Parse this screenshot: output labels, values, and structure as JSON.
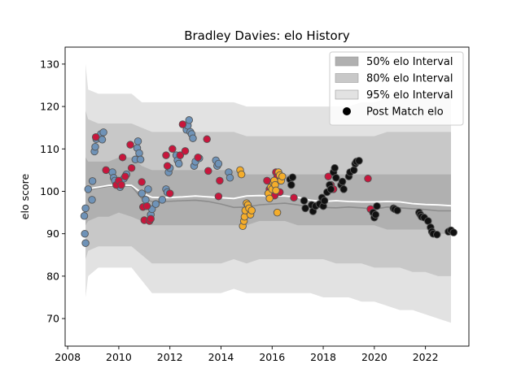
{
  "chart_data": {
    "type": "scatter",
    "title": "Bradley Davies: elo History",
    "xlabel": "",
    "ylabel": "elo score",
    "xlim": [
      2007.9,
      2023.7
    ],
    "ylim": [
      63.5,
      134
    ],
    "xticks": [
      2008,
      2010,
      2012,
      2014,
      2016,
      2018,
      2020,
      2022
    ],
    "yticks": [
      70,
      80,
      90,
      100,
      110,
      120,
      130
    ],
    "legend_position": "top-right",
    "legend": [
      {
        "label": "50% elo Interval",
        "kind": "band",
        "color": "#b0b0b0"
      },
      {
        "label": "80% elo Interval",
        "kind": "band",
        "color": "#c8c8c8"
      },
      {
        "label": "95% elo Interval",
        "kind": "band",
        "color": "#e2e2e2"
      },
      {
        "label": "Post Match elo",
        "kind": "marker",
        "color": "#000000"
      }
    ],
    "colors": {
      "band50": "#b0b0b0",
      "band80": "#c8c8c8",
      "band95": "#e2e2e2",
      "median_line": "#8c8c8c",
      "mean_line": "#ffffff",
      "team_blue": "#6f93b8",
      "team_red": "#c8163c",
      "team_orange": "#f4ad2b",
      "team_black": "#111111",
      "edge": "#555555"
    },
    "bands": {
      "x": [
        2008.7,
        2008.8,
        2009.2,
        2009.6,
        2010.0,
        2010.5,
        2010.9,
        2011.3,
        2011.8,
        2012.5,
        2013.0,
        2013.5,
        2014.0,
        2014.5,
        2015.0,
        2015.5,
        2016.0,
        2016.5,
        2017.0,
        2017.5,
        2018.0,
        2018.5,
        2019.0,
        2019.5,
        2020.0,
        2020.5,
        2021.0,
        2021.5,
        2022.0,
        2022.5,
        2023.0
      ],
      "p95_low": [
        75,
        80,
        82,
        82,
        82,
        82,
        79,
        76,
        76,
        76,
        76,
        76,
        76,
        77,
        76,
        76,
        76,
        76,
        76,
        76,
        75,
        75,
        75,
        74,
        74,
        73,
        72,
        72,
        71,
        70,
        69
      ],
      "p95_high": [
        130,
        124,
        123,
        123,
        123,
        123,
        121,
        121,
        121,
        121,
        121,
        121,
        121,
        121,
        120,
        120,
        120,
        120,
        120,
        120,
        120,
        120,
        120,
        121,
        121,
        122,
        122,
        122,
        123,
        123,
        124
      ],
      "p80_low": [
        84,
        86,
        87,
        87,
        87,
        87,
        85,
        83,
        83,
        83,
        83,
        83,
        83,
        84,
        83,
        84,
        84,
        84,
        84,
        84,
        84,
        83,
        83,
        83,
        82,
        82,
        82,
        81,
        81,
        80,
        80
      ],
      "p80_high": [
        119,
        117,
        116,
        116,
        116,
        116,
        115,
        114,
        114,
        114,
        114,
        114,
        114,
        114,
        113,
        113,
        113,
        113,
        113,
        113,
        113,
        113,
        113,
        113,
        113,
        114,
        114,
        114,
        114,
        114,
        114
      ],
      "p50_low": [
        92,
        93,
        94,
        94,
        95,
        94,
        93,
        92,
        92,
        92,
        92,
        92,
        92,
        92,
        92,
        93,
        93,
        93,
        92,
        92,
        92,
        92,
        92,
        92,
        92,
        91,
        91,
        91,
        91,
        90,
        90
      ],
      "p50_high": [
        108,
        107,
        107,
        107,
        108,
        108,
        106,
        105,
        105,
        105,
        105,
        105,
        105,
        105,
        104,
        104,
        104,
        104,
        104,
        104,
        104,
        104,
        104,
        104,
        104,
        104,
        104,
        104,
        104,
        104,
        104
      ],
      "median": [
        100,
        100.3,
        100.8,
        101.2,
        101.3,
        101.2,
        98.3,
        97.6,
        97.6,
        97.8,
        97.9,
        97.6,
        97.0,
        96.2,
        96.3,
        96.8,
        97.0,
        97.2,
        96.8,
        96.3,
        96.2,
        96.1,
        96.3,
        96.1,
        95.8,
        96.3,
        96.1,
        95.9,
        95.7,
        95.4,
        95.4
      ],
      "mean": [
        100.2,
        100.6,
        101.0,
        101.4,
        101.5,
        101.4,
        99.6,
        98.6,
        98.5,
        98.7,
        98.9,
        98.7,
        98.5,
        98.3,
        98.9,
        99.0,
        98.9,
        98.9,
        98.6,
        97.9,
        97.6,
        97.8,
        97.6,
        97.5,
        97.5,
        97.6,
        97.5,
        97.1,
        96.9,
        96.8,
        96.6
      ]
    },
    "series": [
      {
        "color_key": "team_blue",
        "points": [
          [
            2008.65,
            94.2
          ],
          [
            2008.7,
            96.0
          ],
          [
            2008.67,
            90.0
          ],
          [
            2008.7,
            87.8
          ],
          [
            2008.8,
            100.5
          ],
          [
            2008.95,
            98.0
          ],
          [
            2008.97,
            102.4
          ],
          [
            2009.05,
            109.4
          ],
          [
            2009.08,
            110.5
          ],
          [
            2009.12,
            112.3
          ],
          [
            2009.2,
            112.8
          ],
          [
            2009.3,
            113.5
          ],
          [
            2009.4,
            113.9
          ],
          [
            2009.35,
            112.2
          ],
          [
            2009.75,
            104.5
          ],
          [
            2009.8,
            103.2
          ],
          [
            2009.85,
            102.5
          ],
          [
            2010.05,
            101.0
          ],
          [
            2010.2,
            103.0
          ],
          [
            2010.3,
            104.0
          ],
          [
            2010.65,
            107.5
          ],
          [
            2010.72,
            110.2
          ],
          [
            2010.75,
            111.8
          ],
          [
            2010.8,
            109.0
          ],
          [
            2010.85,
            107.5
          ],
          [
            2010.9,
            99.5
          ],
          [
            2011.05,
            98.0
          ],
          [
            2011.15,
            100.5
          ],
          [
            2011.25,
            94.5
          ],
          [
            2011.3,
            95.8
          ],
          [
            2011.45,
            97.0
          ],
          [
            2011.7,
            98.0
          ],
          [
            2011.85,
            100.5
          ],
          [
            2011.9,
            99.8
          ],
          [
            2011.95,
            104.5
          ],
          [
            2012.0,
            105.5
          ],
          [
            2012.25,
            108.5
          ],
          [
            2012.3,
            107.3
          ],
          [
            2012.35,
            106.5
          ],
          [
            2012.65,
            114.5
          ],
          [
            2012.7,
            115.5
          ],
          [
            2012.75,
            116.8
          ],
          [
            2012.8,
            114.0
          ],
          [
            2012.85,
            113.5
          ],
          [
            2012.9,
            112.5
          ],
          [
            2012.95,
            106.0
          ],
          [
            2013.0,
            107.0
          ],
          [
            2013.15,
            107.8
          ],
          [
            2013.8,
            107.3
          ],
          [
            2013.85,
            106.0
          ],
          [
            2013.9,
            106.5
          ],
          [
            2014.3,
            104.5
          ],
          [
            2014.35,
            103.2
          ]
        ]
      },
      {
        "color_key": "team_red",
        "points": [
          [
            2009.1,
            112.8
          ],
          [
            2009.5,
            105.0
          ],
          [
            2009.9,
            101.5
          ],
          [
            2010.0,
            102.5
          ],
          [
            2010.1,
            101.5
          ],
          [
            2010.15,
            108.0
          ],
          [
            2010.25,
            103.5
          ],
          [
            2010.45,
            111.0
          ],
          [
            2010.5,
            105.5
          ],
          [
            2010.9,
            102.2
          ],
          [
            2010.95,
            96.3
          ],
          [
            2011.0,
            93.2
          ],
          [
            2011.1,
            96.5
          ],
          [
            2011.2,
            93.0
          ],
          [
            2011.25,
            93.5
          ],
          [
            2011.85,
            108.5
          ],
          [
            2011.9,
            106.0
          ],
          [
            2012.0,
            99.5
          ],
          [
            2012.1,
            110.0
          ],
          [
            2012.4,
            108.5
          ],
          [
            2012.5,
            115.8
          ],
          [
            2012.6,
            109.5
          ],
          [
            2013.1,
            108.0
          ],
          [
            2013.45,
            112.3
          ],
          [
            2013.5,
            104.8
          ],
          [
            2013.9,
            98.8
          ],
          [
            2013.95,
            102.5
          ],
          [
            2015.8,
            102.5
          ],
          [
            2015.9,
            100.5
          ],
          [
            2016.1,
            99.0
          ],
          [
            2016.15,
            104.5
          ],
          [
            2016.2,
            103.5
          ],
          [
            2016.3,
            99.8
          ],
          [
            2016.85,
            98.5
          ],
          [
            2018.2,
            103.5
          ],
          [
            2018.3,
            101.5
          ],
          [
            2018.4,
            100.5
          ],
          [
            2019.75,
            103.0
          ],
          [
            2019.85,
            95.8
          ]
        ]
      },
      {
        "color_key": "team_orange",
        "points": [
          [
            2014.75,
            105.0
          ],
          [
            2014.8,
            104.0
          ],
          [
            2014.85,
            91.8
          ],
          [
            2014.9,
            93.0
          ],
          [
            2014.92,
            94.0
          ],
          [
            2014.95,
            95.5
          ],
          [
            2015.0,
            97.2
          ],
          [
            2015.05,
            96.8
          ],
          [
            2015.1,
            96.0
          ],
          [
            2015.15,
            94.5
          ],
          [
            2015.2,
            95.5
          ],
          [
            2015.85,
            99.5
          ],
          [
            2015.9,
            98.3
          ],
          [
            2015.95,
            101.0
          ],
          [
            2016.0,
            100.5
          ],
          [
            2016.05,
            102.0
          ],
          [
            2016.08,
            102.5
          ],
          [
            2016.12,
            101.5
          ],
          [
            2016.15,
            100.2
          ],
          [
            2016.2,
            95.0
          ],
          [
            2016.25,
            104.5
          ],
          [
            2016.3,
            103.8
          ],
          [
            2016.35,
            102.5
          ],
          [
            2016.4,
            103.5
          ]
        ]
      },
      {
        "color_key": "team_black",
        "points": [
          [
            2016.7,
            102.8
          ],
          [
            2016.75,
            101.5
          ],
          [
            2016.8,
            103.3
          ],
          [
            2017.25,
            97.8
          ],
          [
            2017.3,
            96.0
          ],
          [
            2017.55,
            96.8
          ],
          [
            2017.6,
            95.3
          ],
          [
            2017.7,
            96.5
          ],
          [
            2017.85,
            97.0
          ],
          [
            2017.95,
            98.5
          ],
          [
            2018.0,
            96.5
          ],
          [
            2018.05,
            97.8
          ],
          [
            2018.15,
            99.8
          ],
          [
            2018.25,
            101.5
          ],
          [
            2018.3,
            100.5
          ],
          [
            2018.4,
            104.5
          ],
          [
            2018.45,
            105.5
          ],
          [
            2018.5,
            103.2
          ],
          [
            2018.7,
            101.5
          ],
          [
            2018.75,
            102.3
          ],
          [
            2018.8,
            100.5
          ],
          [
            2019.0,
            103.5
          ],
          [
            2019.05,
            104.5
          ],
          [
            2019.2,
            105.0
          ],
          [
            2019.25,
            106.5
          ],
          [
            2019.3,
            107.0
          ],
          [
            2019.4,
            107.2
          ],
          [
            2019.95,
            95.0
          ],
          [
            2020.0,
            93.8
          ],
          [
            2020.05,
            94.5
          ],
          [
            2020.1,
            96.5
          ],
          [
            2020.75,
            96.0
          ],
          [
            2020.8,
            95.8
          ],
          [
            2020.9,
            95.5
          ],
          [
            2021.75,
            95.0
          ],
          [
            2021.8,
            94.5
          ],
          [
            2021.85,
            94.0
          ],
          [
            2021.95,
            93.8
          ],
          [
            2022.1,
            93.0
          ],
          [
            2022.2,
            91.5
          ],
          [
            2022.25,
            90.5
          ],
          [
            2022.3,
            90.0
          ],
          [
            2022.45,
            89.8
          ],
          [
            2022.9,
            90.5
          ],
          [
            2023.0,
            90.8
          ],
          [
            2023.1,
            90.3
          ]
        ]
      }
    ]
  }
}
